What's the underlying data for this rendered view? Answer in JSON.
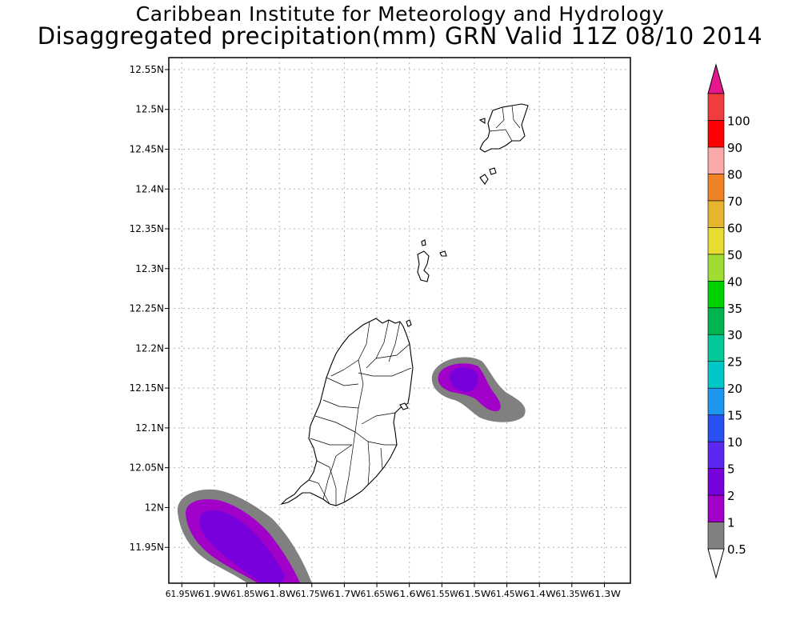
{
  "header": {
    "title": "Caribbean Institute for Meteorology and Hydrology",
    "subtitle": "Disaggregated precipitation(mm) GRN Valid 11Z 08/10 2014"
  },
  "map": {
    "lon_range": [
      -61.97,
      -61.26
    ],
    "lat_range": [
      11.905,
      12.565
    ],
    "lat_ticks": [
      {
        "value": 12.55,
        "label": "12.55N"
      },
      {
        "value": 12.5,
        "label": "12.5N"
      },
      {
        "value": 12.45,
        "label": "12.45N"
      },
      {
        "value": 12.4,
        "label": "12.4N"
      },
      {
        "value": 12.35,
        "label": "12.35N"
      },
      {
        "value": 12.3,
        "label": "12.3N"
      },
      {
        "value": 12.25,
        "label": "12.25N"
      },
      {
        "value": 12.2,
        "label": "12.2N"
      },
      {
        "value": 12.15,
        "label": "12.15N"
      },
      {
        "value": 12.1,
        "label": "12.1N"
      },
      {
        "value": 12.05,
        "label": "12.05N"
      },
      {
        "value": 12.0,
        "label": "12N"
      },
      {
        "value": 11.95,
        "label": "11.95N"
      }
    ],
    "lon_ticks": [
      {
        "value": -61.95,
        "label": "61.95W"
      },
      {
        "value": -61.9,
        "label": "61.9W"
      },
      {
        "value": -61.85,
        "label": "61.85W"
      },
      {
        "value": -61.8,
        "label": "61.8W"
      },
      {
        "value": -61.75,
        "label": "61.75W"
      },
      {
        "value": -61.7,
        "label": "61.7W"
      },
      {
        "value": -61.65,
        "label": "61.65W"
      },
      {
        "value": -61.6,
        "label": "61.6W"
      },
      {
        "value": -61.55,
        "label": "61.55W"
      },
      {
        "value": -61.5,
        "label": "61.5W"
      },
      {
        "value": -61.45,
        "label": "61.45W"
      },
      {
        "value": -61.4,
        "label": "61.4W"
      },
      {
        "value": -61.35,
        "label": "61.35W"
      },
      {
        "value": -61.3,
        "label": "61.3W"
      }
    ],
    "grid": true,
    "features": [
      "Grenada",
      "Carriacou",
      "Ronde Island"
    ],
    "precipitation_areas": [
      {
        "location": "east of Grenada",
        "max_class_mm": "2-5"
      },
      {
        "location": "south-west of Grenada",
        "max_class_mm": "2-5"
      }
    ]
  },
  "colorbar": {
    "units": "mm",
    "levels": [
      "0.5",
      "1",
      "2",
      "5",
      "10",
      "15",
      "20",
      "25",
      "30",
      "35",
      "40",
      "50",
      "60",
      "70",
      "80",
      "90",
      "100"
    ],
    "colors": [
      "#808080",
      "#a000c8",
      "#7800dc",
      "#5a28f0",
      "#2850f0",
      "#1e96f0",
      "#00c8c8",
      "#00c896",
      "#00b450",
      "#00d200",
      "#a0dc32",
      "#e6dc32",
      "#e6b42d",
      "#f08228",
      "#faaaaa",
      "#fa0000",
      "#f03c3c"
    ],
    "top_arrow_color": "#e6168c",
    "bottom_arrow_color": "#ffffff"
  }
}
